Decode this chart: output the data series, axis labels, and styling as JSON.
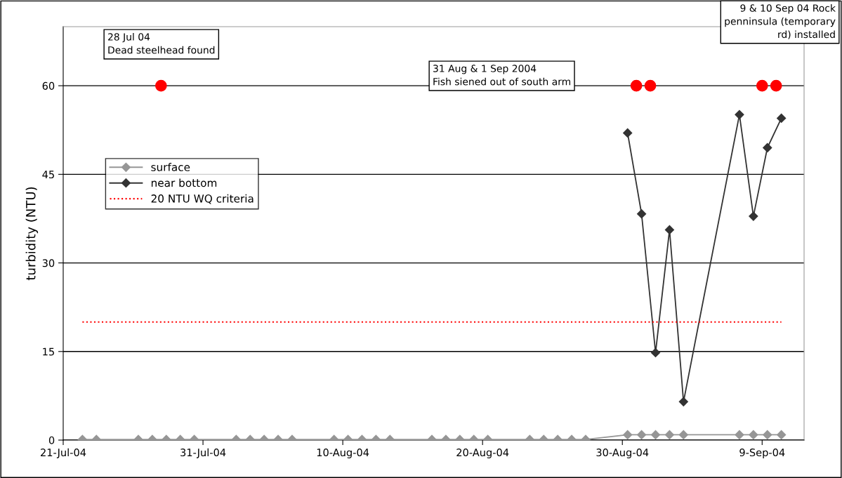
{
  "chart_data": {
    "type": "line",
    "ylabel": "turbidity (NTU)",
    "xlim": [
      "2004-07-21",
      "2004-09-12"
    ],
    "xticks": [
      {
        "value": "2004-07-21",
        "label": "21-Jul-04"
      },
      {
        "value": "2004-07-31",
        "label": "31-Jul-04"
      },
      {
        "value": "2004-08-10",
        "label": "10-Aug-04"
      },
      {
        "value": "2004-08-20",
        "label": "20-Aug-04"
      },
      {
        "value": "2004-08-30",
        "label": "30-Aug-04"
      },
      {
        "value": "2004-09-09",
        "label": "9-Sep-04"
      }
    ],
    "ylim": [
      0,
      70
    ],
    "yticks": [
      0,
      15,
      30,
      45,
      60
    ],
    "grid": "y",
    "legend": "left",
    "series": [
      {
        "name": "surface",
        "color": "#969696",
        "marker": "diamond",
        "x": [
          "2004-07-22T09:00",
          "2004-07-23T09:00",
          "2004-07-26T09:00",
          "2004-07-27T09:00",
          "2004-07-28T09:00",
          "2004-07-29T09:00",
          "2004-07-30T09:00",
          "2004-08-02T09:00",
          "2004-08-03T09:00",
          "2004-08-04T09:00",
          "2004-08-05T09:00",
          "2004-08-06T09:00",
          "2004-08-09T09:00",
          "2004-08-10T09:00",
          "2004-08-11T09:00",
          "2004-08-12T09:00",
          "2004-08-13T09:00",
          "2004-08-16T09:00",
          "2004-08-17T09:00",
          "2004-08-18T09:00",
          "2004-08-19T09:00",
          "2004-08-20T09:00",
          "2004-08-23T09:00",
          "2004-08-24T09:00",
          "2004-08-25T09:00",
          "2004-08-26T09:00",
          "2004-08-27T09:00",
          "2004-08-30T09:00",
          "2004-08-31T09:00",
          "2004-09-01T09:00",
          "2004-09-02T09:00",
          "2004-09-03T09:00",
          "2004-09-07T09:00",
          "2004-09-08T09:00",
          "2004-09-09T09:00",
          "2004-09-10T09:00"
        ],
        "values": [
          0.1,
          0.1,
          0.1,
          0.1,
          0.1,
          0.1,
          0.1,
          0.1,
          0.1,
          0.1,
          0.1,
          0.1,
          0.1,
          0.1,
          0.1,
          0.1,
          0.1,
          0.1,
          0.1,
          0.1,
          0.1,
          0.1,
          0.1,
          0.1,
          0.1,
          0.1,
          0.1,
          0.9,
          0.9,
          0.9,
          0.9,
          0.9,
          0.9,
          0.9,
          0.9,
          0.9
        ]
      },
      {
        "name": "near bottom",
        "color": "#333333",
        "marker": "diamond",
        "x": [
          "2004-08-30T09:00",
          "2004-08-31T09:00",
          "2004-09-01T09:00",
          "2004-09-02T09:00",
          "2004-09-03T09:00",
          "2004-09-07T09:00",
          "2004-09-08T09:00",
          "2004-09-09T09:00",
          "2004-09-10T09:00"
        ],
        "values": [
          52.0,
          38.3,
          14.8,
          35.6,
          6.5,
          55.1,
          37.9,
          49.5,
          54.5
        ]
      },
      {
        "name": "20 NTU WQ criteria",
        "color": "#ff0000",
        "marker": "none",
        "line_style": "dotted",
        "x": [
          "2004-07-22T09:00",
          "2004-09-10T09:00"
        ],
        "values": [
          20,
          20
        ]
      },
      {
        "type": "scatter",
        "color": "#ff0000",
        "marker": "circle",
        "x": [
          "2004-07-28",
          "2004-08-31",
          "2004-09-01",
          "2004-09-09",
          "2004-09-10"
        ],
        "values": [
          60,
          60,
          60,
          60,
          60
        ]
      }
    ],
    "annotations": [
      "28 Jul 04\nDead steelhead found",
      "31 Aug & 1 Sep 2004\nFish siened out of south arm",
      "9 & 10 Sep 04 Rock\npenninsula (temporary\nrd) installed"
    ]
  }
}
